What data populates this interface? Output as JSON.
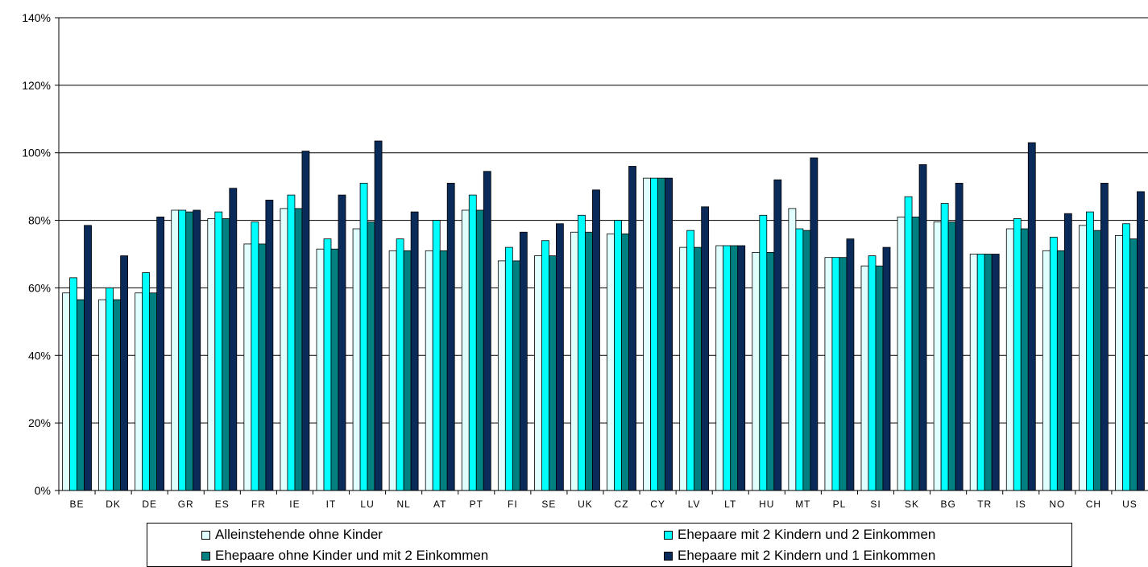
{
  "chart_data": {
    "type": "bar",
    "categories": [
      "BE",
      "DK",
      "DE",
      "GR",
      "ES",
      "FR",
      "IE",
      "IT",
      "LU",
      "NL",
      "AT",
      "PT",
      "FI",
      "SE",
      "UK",
      "CZ",
      "CY",
      "LV",
      "LT",
      "HU",
      "MT",
      "PL",
      "SI",
      "SK",
      "BG",
      "TR",
      "IS",
      "NO",
      "CH",
      "US"
    ],
    "y_ticks": [
      "0%",
      "20%",
      "40%",
      "60%",
      "80%",
      "100%",
      "120%",
      "140%"
    ],
    "ylim": [
      0,
      140
    ],
    "grid": true,
    "legend_position": "bottom",
    "series": [
      {
        "name": "Alleinstehende ohne Kinder",
        "color": "#e0ffff",
        "values": [
          58.5,
          56.5,
          58.5,
          83,
          80.5,
          73,
          83.5,
          71.5,
          77.5,
          71,
          71,
          83,
          68,
          69.5,
          76.5,
          76,
          92.5,
          72,
          72.5,
          70.5,
          83.5,
          69,
          66.5,
          81,
          79.5,
          70,
          77.5,
          71,
          78.5,
          75.5
        ]
      },
      {
        "name": "Ehepaare mit 2 Kindern und 2 Einkommen",
        "color": "#00ffff",
        "values": [
          63,
          60,
          64.5,
          83,
          82.5,
          79.5,
          87.5,
          74.5,
          91,
          74.5,
          80,
          87.5,
          72,
          74,
          81.5,
          80,
          92.5,
          77,
          72.5,
          81.5,
          77.5,
          69,
          69.5,
          87,
          85,
          70,
          80.5,
          75,
          82.5,
          79
        ]
      },
      {
        "name": "Ehepaare ohne Kinder und mit 2 Einkommen",
        "color": "#008080",
        "values": [
          56.5,
          56.5,
          58.5,
          82.5,
          80.5,
          73,
          83.5,
          71.5,
          79.5,
          71,
          71,
          83,
          68,
          69.5,
          76.5,
          76,
          92.5,
          72,
          72.5,
          70.5,
          77,
          69,
          66.5,
          81,
          79.5,
          70,
          77.5,
          71,
          77,
          74.5
        ]
      },
      {
        "name": "Ehepaare mit 2 Kindern und 1 Einkommen",
        "color": "#0a2a5a",
        "values": [
          78.5,
          69.5,
          81,
          83,
          89.5,
          86,
          100.5,
          87.5,
          103.5,
          82.5,
          91,
          94.5,
          76.5,
          79,
          89,
          96,
          92.5,
          84,
          72.5,
          92,
          98.5,
          74.5,
          72,
          96.5,
          91,
          70,
          103,
          82,
          91,
          88.5
        ]
      }
    ]
  }
}
